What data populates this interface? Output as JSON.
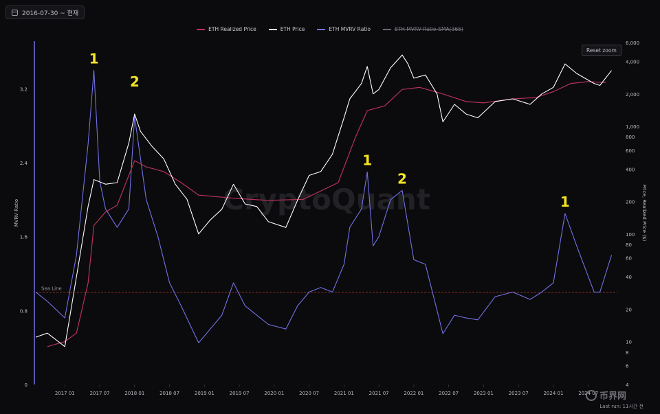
{
  "date_range": {
    "label": "2016-07-30 ~ 현재"
  },
  "legend": [
    {
      "label": "ETH Realized Price",
      "color": "#b8325a",
      "active": true
    },
    {
      "label": "ETH Price",
      "color": "#ffffff",
      "active": true
    },
    {
      "label": "ETH MVRV Ratio",
      "color": "#7272e8",
      "active": true
    },
    {
      "label": "ETH MVRV Ratio-SMA(365)",
      "color": "#6a6a72",
      "active": false
    }
  ],
  "reset_zoom_label": "Reset zoom",
  "watermark": "CryptoQuant",
  "sea_line_label": "Sea Line",
  "footer_text": "Last run: 11시간 전",
  "source_logo_text": "币界网",
  "annotations": [
    {
      "text": "1",
      "date": "2017-06"
    },
    {
      "text": "2",
      "date": "2018-01"
    },
    {
      "text": "1",
      "date": "2021-05"
    },
    {
      "text": "2",
      "date": "2021-11"
    },
    {
      "text": "1",
      "date": "2024-03"
    }
  ],
  "chart_data": {
    "type": "line",
    "title": "",
    "xlabel": "",
    "x_tick_labels": [
      "2017 01",
      "2017 07",
      "2018 01",
      "2018 07",
      "2019 01",
      "2019 07",
      "2020 01",
      "2020 07",
      "2021 01",
      "2021 07",
      "2022 01",
      "2022 07",
      "2023 01",
      "2023 07",
      "2024 01",
      "2024 07"
    ],
    "y_left": {
      "label": "MVRV Ratio",
      "range": [
        0,
        3.7
      ],
      "ticks": [
        "0",
        "0.8",
        "1.6",
        "2.4",
        "3.2"
      ]
    },
    "y_right": {
      "label": "Price, Realized Price ($)",
      "scale": "log",
      "range": [
        4,
        6000
      ],
      "ticks": [
        "4",
        "6",
        "8",
        "10",
        "20",
        "40",
        "60",
        "80",
        "100",
        "200",
        "400",
        "600",
        "800",
        "1,000",
        "2,000",
        "4,000",
        "6,000"
      ]
    },
    "sea_line_value": 1.0,
    "series": [
      {
        "name": "ETH Realized Price",
        "axis": "right",
        "color": "#b8325a",
        "x": [
          "2016-10",
          "2017-01",
          "2017-03",
          "2017-05",
          "2017-06",
          "2017-08",
          "2017-10",
          "2018-01",
          "2018-03",
          "2018-06",
          "2018-09",
          "2018-12",
          "2019-06",
          "2019-12",
          "2020-06",
          "2020-12",
          "2021-03",
          "2021-05",
          "2021-08",
          "2021-11",
          "2022-02",
          "2022-06",
          "2022-10",
          "2023-01",
          "2023-06",
          "2023-10",
          "2024-01",
          "2024-04",
          "2024-07",
          "2024-10"
        ],
        "values": [
          9,
          10,
          12,
          35,
          120,
          160,
          185,
          480,
          420,
          380,
          300,
          230,
          215,
          205,
          210,
          300,
          800,
          1400,
          1550,
          2200,
          2300,
          2000,
          1700,
          1650,
          1800,
          1850,
          2100,
          2500,
          2600,
          2550
        ]
      },
      {
        "name": "ETH Price",
        "axis": "right",
        "color": "#ffffff",
        "x": [
          "2016-08",
          "2016-10",
          "2017-01",
          "2017-03",
          "2017-05",
          "2017-06",
          "2017-08",
          "2017-10",
          "2017-12",
          "2018-01",
          "2018-02",
          "2018-04",
          "2018-06",
          "2018-08",
          "2018-10",
          "2018-12",
          "2019-02",
          "2019-04",
          "2019-06",
          "2019-08",
          "2019-10",
          "2019-12",
          "2020-03",
          "2020-05",
          "2020-07",
          "2020-09",
          "2020-11",
          "2021-01",
          "2021-02",
          "2021-04",
          "2021-05",
          "2021-06",
          "2021-07",
          "2021-09",
          "2021-11",
          "2021-12",
          "2022-01",
          "2022-03",
          "2022-05",
          "2022-06",
          "2022-08",
          "2022-10",
          "2022-12",
          "2023-03",
          "2023-06",
          "2023-09",
          "2023-11",
          "2024-01",
          "2024-03",
          "2024-05",
          "2024-08",
          "2024-09",
          "2024-11"
        ],
        "values": [
          11,
          12,
          9,
          40,
          180,
          320,
          290,
          300,
          700,
          1300,
          900,
          650,
          500,
          290,
          210,
          100,
          135,
          170,
          290,
          190,
          180,
          130,
          115,
          205,
          350,
          380,
          550,
          1200,
          1800,
          2500,
          3600,
          2000,
          2200,
          3500,
          4600,
          3800,
          2800,
          3000,
          2000,
          1100,
          1600,
          1300,
          1200,
          1700,
          1800,
          1600,
          2000,
          2300,
          3800,
          3100,
          2500,
          2400,
          3300
        ]
      },
      {
        "name": "ETH MVRV Ratio",
        "axis": "left",
        "color": "#7272e8",
        "x": [
          "2016-08",
          "2016-10",
          "2017-01",
          "2017-03",
          "2017-05",
          "2017-06",
          "2017-07",
          "2017-08",
          "2017-10",
          "2017-12",
          "2018-01",
          "2018-03",
          "2018-05",
          "2018-07",
          "2018-09",
          "2018-12",
          "2019-02",
          "2019-04",
          "2019-06",
          "2019-08",
          "2019-10",
          "2019-12",
          "2020-03",
          "2020-05",
          "2020-07",
          "2020-09",
          "2020-11",
          "2021-01",
          "2021-02",
          "2021-04",
          "2021-05",
          "2021-06",
          "2021-07",
          "2021-09",
          "2021-11",
          "2022-01",
          "2022-03",
          "2022-06",
          "2022-08",
          "2022-10",
          "2022-12",
          "2023-03",
          "2023-06",
          "2023-09",
          "2023-11",
          "2024-01",
          "2024-03",
          "2024-05",
          "2024-08",
          "2024-09",
          "2024-11"
        ],
        "values": [
          1.0,
          0.9,
          0.72,
          1.4,
          2.6,
          3.4,
          2.2,
          1.9,
          1.7,
          1.9,
          2.9,
          2.0,
          1.6,
          1.1,
          0.85,
          0.45,
          0.6,
          0.75,
          1.1,
          0.85,
          0.75,
          0.65,
          0.6,
          0.85,
          1.0,
          1.05,
          1.0,
          1.3,
          1.7,
          1.9,
          2.3,
          1.5,
          1.6,
          2.0,
          2.1,
          1.35,
          1.3,
          0.55,
          0.75,
          0.72,
          0.7,
          0.95,
          1.0,
          0.92,
          1.0,
          1.1,
          1.85,
          1.5,
          1.0,
          1.0,
          1.4
        ]
      }
    ]
  }
}
